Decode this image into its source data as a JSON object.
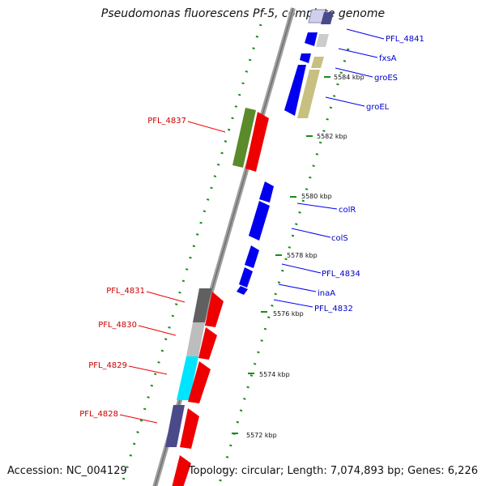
{
  "title": "Pseudomonas fluorescens Pf-5, complete genome",
  "footer": {
    "accession": "Accession: NC_004129",
    "summary": "Topology: circular; Length: 7,074,893 bp; Genes: 6,226"
  },
  "colors": {
    "backbone": "#8c8c8c",
    "forward_gene": "#0000ee",
    "reverse_gene": "#ee0000",
    "forward_label": "#0000cc",
    "reverse_label": "#cc0000",
    "tick": "#2e8b2e"
  },
  "ticks": [
    {
      "label": "5584 kbp"
    },
    {
      "label": "5582 kbp"
    },
    {
      "label": "5580 kbp"
    },
    {
      "label": "5578 kbp"
    },
    {
      "label": "5576 kbp"
    },
    {
      "label": "5574 kbp"
    },
    {
      "label": "5572 kbp"
    }
  ],
  "forward_labels": [
    {
      "label": "PFL_4841"
    },
    {
      "label": "fxsA"
    },
    {
      "label": "groES"
    },
    {
      "label": "groEL"
    },
    {
      "label": "colR"
    },
    {
      "label": "colS"
    },
    {
      "label": "PFL_4834"
    },
    {
      "label": "inaA"
    },
    {
      "label": "PFL_4832"
    }
  ],
  "reverse_labels": [
    {
      "label": "PFL_4837"
    },
    {
      "label": "PFL_4831"
    },
    {
      "label": "PFL_4830"
    },
    {
      "label": "PFL_4829"
    },
    {
      "label": "PFL_4828"
    }
  ]
}
